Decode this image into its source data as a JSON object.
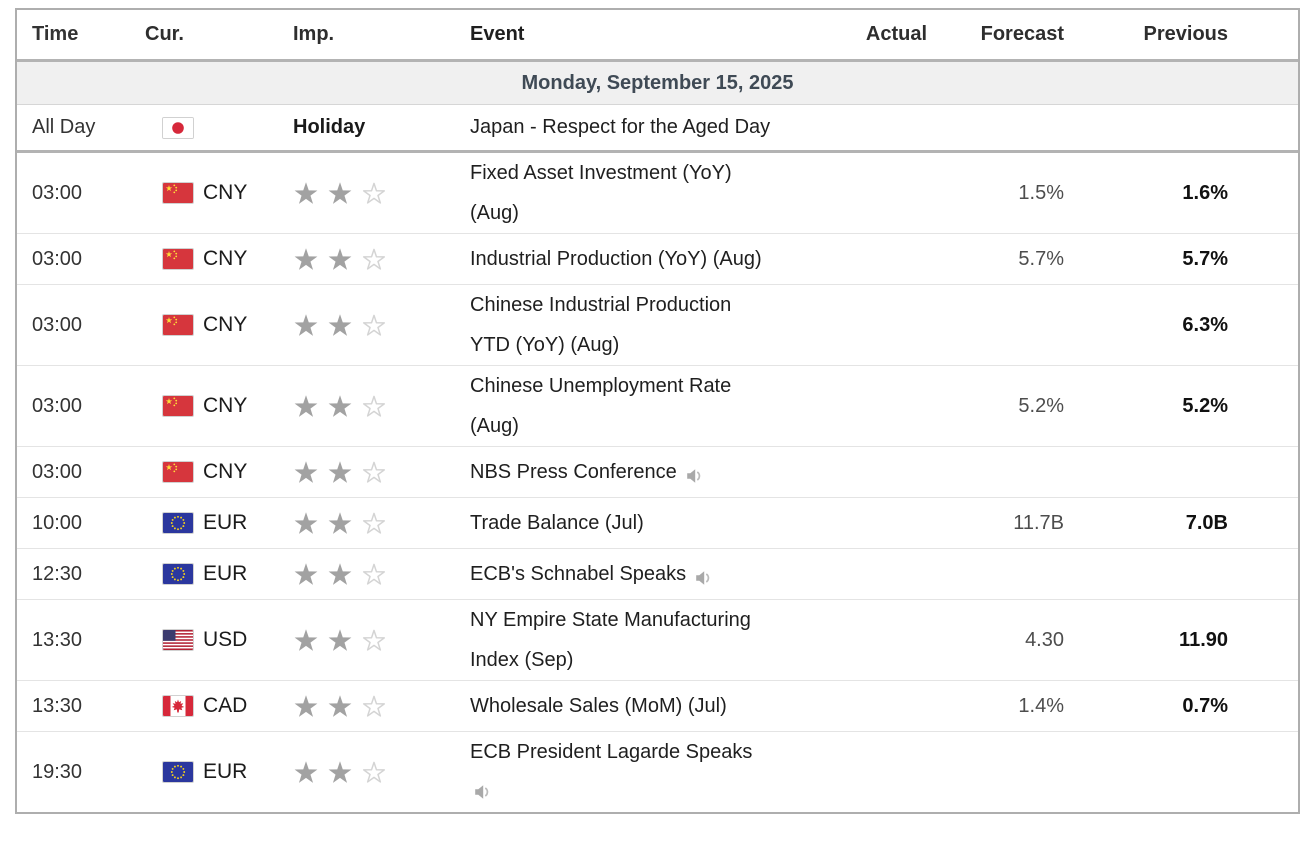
{
  "header": {
    "columns": [
      {
        "key": "time",
        "label": "Time"
      },
      {
        "key": "cur",
        "label": "Cur."
      },
      {
        "key": "imp",
        "label": "Imp."
      },
      {
        "key": "event",
        "label": "Event"
      },
      {
        "key": "actual",
        "label": "Actual"
      },
      {
        "key": "forecast",
        "label": "Forecast"
      },
      {
        "key": "previous",
        "label": "Previous"
      }
    ]
  },
  "day": {
    "date_label": "Monday, September 15, 2025"
  },
  "holiday": {
    "time": "All Day",
    "flag": "japan",
    "label": "Holiday",
    "event": "Japan - Respect for the Aged Day"
  },
  "events": [
    {
      "time": "03:00",
      "currency": "CNY",
      "flag": "china",
      "importance": 2,
      "importance_max": 3,
      "event": "Fixed Asset Investment (YoY)\n(Aug)",
      "actual": "",
      "forecast": "1.5%",
      "previous": "1.6%",
      "has_speech": false,
      "speech_on_new_line": false
    },
    {
      "time": "03:00",
      "currency": "CNY",
      "flag": "china",
      "importance": 2,
      "importance_max": 3,
      "event": "Industrial Production (YoY) (Aug)",
      "actual": "",
      "forecast": "5.7%",
      "previous": "5.7%",
      "has_speech": false,
      "speech_on_new_line": false
    },
    {
      "time": "03:00",
      "currency": "CNY",
      "flag": "china",
      "importance": 2,
      "importance_max": 3,
      "event": "Chinese Industrial Production\nYTD (YoY) (Aug)",
      "actual": "",
      "forecast": "",
      "previous": "6.3%",
      "has_speech": false,
      "speech_on_new_line": false
    },
    {
      "time": "03:00",
      "currency": "CNY",
      "flag": "china",
      "importance": 2,
      "importance_max": 3,
      "event": "Chinese Unemployment Rate\n(Aug)",
      "actual": "",
      "forecast": "5.2%",
      "previous": "5.2%",
      "has_speech": false,
      "speech_on_new_line": false
    },
    {
      "time": "03:00",
      "currency": "CNY",
      "flag": "china",
      "importance": 2,
      "importance_max": 3,
      "event": "NBS Press Conference",
      "actual": "",
      "forecast": "",
      "previous": "",
      "has_speech": true,
      "speech_on_new_line": false
    },
    {
      "time": "10:00",
      "currency": "EUR",
      "flag": "eu",
      "importance": 2,
      "importance_max": 3,
      "event": "Trade Balance (Jul)",
      "actual": "",
      "forecast": "11.7B",
      "previous": "7.0B",
      "has_speech": false,
      "speech_on_new_line": false
    },
    {
      "time": "12:30",
      "currency": "EUR",
      "flag": "eu",
      "importance": 2,
      "importance_max": 3,
      "event": "ECB's Schnabel Speaks",
      "actual": "",
      "forecast": "",
      "previous": "",
      "has_speech": true,
      "speech_on_new_line": false
    },
    {
      "time": "13:30",
      "currency": "USD",
      "flag": "usa",
      "importance": 2,
      "importance_max": 3,
      "event": "NY Empire State Manufacturing\nIndex (Sep)",
      "actual": "",
      "forecast": "4.30",
      "previous": "11.90",
      "has_speech": false,
      "speech_on_new_line": false
    },
    {
      "time": "13:30",
      "currency": "CAD",
      "flag": "canada",
      "importance": 2,
      "importance_max": 3,
      "event": "Wholesale Sales (MoM) (Jul)",
      "actual": "",
      "forecast": "1.4%",
      "previous": "0.7%",
      "has_speech": false,
      "speech_on_new_line": false
    },
    {
      "time": "19:30",
      "currency": "EUR",
      "flag": "eu",
      "importance": 2,
      "importance_max": 3,
      "event": "ECB President Lagarde Speaks",
      "actual": "",
      "forecast": "",
      "previous": "",
      "has_speech": true,
      "speech_on_new_line": true
    }
  ],
  "icons": {
    "speech_icon": "speaker-icon",
    "importance_filled": "star-filled-icon",
    "importance_empty": "star-empty-icon"
  },
  "colors": {
    "date_row_bg": "#f0f0f0",
    "strong_border": "#b3b3b3",
    "row_border": "#e4e4e4",
    "star_filled": "#a2a2a2",
    "star_empty_outline": "#d4d4d4",
    "forecast_text": "#4d4d4d",
    "previous_text": "#111111",
    "date_text": "#3f4a55"
  }
}
